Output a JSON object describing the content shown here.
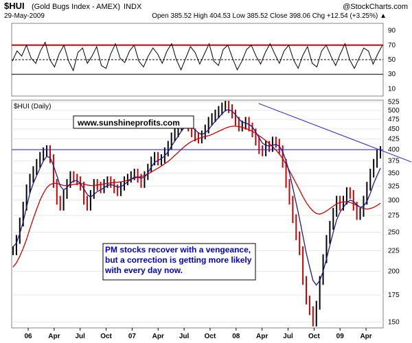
{
  "header": {
    "symbol": "$HUI",
    "name": "(Gold Bugs Index - AMEX)",
    "exchange": "INDX",
    "date": "29-May-2009",
    "ohlc": "Open 385.52  High 404.53  Low 385.52  Close 398.06  Chg +12.54 (+3.25%) ▲",
    "watermark": "@StockCharts.com"
  },
  "colors": {
    "price_bar": "#000000",
    "ma_short": "#1a1a8c",
    "ma_long": "#cc0000",
    "resistance": "#1f1fd6",
    "rsi_line": "#000000",
    "rsi_overbought": "#cc0000",
    "rsi_dashed": "#000000",
    "annotation_text": "#0000cc",
    "box_border": "#000000"
  },
  "chart_data": [
    {
      "type": "line",
      "title": "",
      "xlabel": "",
      "ylabel": "",
      "ylim": [
        0,
        100
      ],
      "ticks": [
        "90",
        "70",
        "50",
        "30",
        "10"
      ],
      "reference_lines": [
        70,
        50,
        30
      ],
      "series": [
        {
          "values": [
            48,
            62,
            55,
            70,
            52,
            45,
            62,
            74,
            50,
            40,
            58,
            70,
            48,
            35,
            60,
            66,
            45,
            55,
            68,
            42,
            38,
            58,
            72,
            52,
            46,
            62,
            70,
            48,
            40,
            55,
            66,
            58,
            45,
            62,
            72,
            50,
            36,
            52,
            68,
            60,
            44,
            58,
            72,
            48,
            42,
            64,
            70,
            52,
            36,
            48,
            64,
            70,
            55,
            44,
            60,
            72,
            58,
            45,
            62,
            70,
            50,
            38,
            56,
            68,
            45,
            40,
            62,
            70,
            55,
            42,
            58,
            72,
            50,
            38,
            52,
            66,
            62,
            44,
            58,
            70
          ]
        }
      ]
    },
    {
      "type": "bar",
      "title": "$HUI (Daily)",
      "xlabel": "",
      "ylabel": "",
      "ylim": [
        145,
        530
      ],
      "yscale": "log",
      "x_ticks": [
        "06",
        "Apr",
        "Jul",
        "Oct",
        "07",
        "Apr",
        "Jul",
        "Oct",
        "08",
        "Apr",
        "Jul",
        "Oct",
        "09",
        "Apr"
      ],
      "y_ticks": [
        "525",
        "500",
        "475",
        "450",
        "425",
        "400",
        "375",
        "350",
        "325",
        "300",
        "275",
        "250",
        "225",
        "200",
        "175",
        "150"
      ],
      "series": [
        {
          "name": "price",
          "values": [
            225,
            240,
            265,
            290,
            320,
            340,
            355,
            370,
            385,
            395,
            400,
            380,
            330,
            300,
            290,
            310,
            330,
            345,
            340,
            335,
            325,
            300,
            290,
            310,
            330,
            325,
            320,
            330,
            335,
            330,
            320,
            315,
            325,
            335,
            340,
            345,
            350,
            340,
            330,
            345,
            360,
            375,
            385,
            375,
            380,
            395,
            410,
            430,
            440,
            455,
            465,
            470,
            455,
            440,
            430,
            425,
            435,
            450,
            470,
            480,
            490,
            500,
            510,
            515,
            505,
            490,
            470,
            455,
            460,
            470,
            455,
            440,
            420,
            400,
            395,
            410,
            405,
            420,
            415,
            400,
            370,
            330,
            300,
            270,
            245,
            225,
            190,
            170,
            160,
            150,
            165,
            190,
            215,
            240,
            260,
            280,
            300,
            290,
            300,
            315,
            310,
            290,
            275,
            280,
            300,
            325,
            350,
            370,
            390,
            398
          ]
        },
        {
          "name": "ma_short",
          "values": [
            230,
            235,
            248,
            265,
            288,
            312,
            330,
            345,
            360,
            375,
            385,
            382,
            365,
            345,
            325,
            318,
            322,
            330,
            335,
            335,
            330,
            320,
            310,
            305,
            310,
            315,
            318,
            322,
            326,
            328,
            326,
            323,
            324,
            328,
            333,
            338,
            342,
            342,
            340,
            342,
            350,
            362,
            372,
            376,
            380,
            386,
            395,
            408,
            420,
            432,
            445,
            455,
            458,
            455,
            448,
            440,
            436,
            440,
            448,
            460,
            470,
            480,
            490,
            500,
            502,
            498,
            488,
            476,
            468,
            465,
            462,
            455,
            442,
            428,
            415,
            410,
            408,
            410,
            412,
            408,
            395,
            375,
            350,
            322,
            295,
            270,
            245,
            222,
            205,
            190,
            185,
            190,
            200,
            215,
            232,
            250,
            268,
            280,
            288,
            296,
            300,
            298,
            292,
            288,
            290,
            298,
            312,
            330,
            345,
            360
          ]
        },
        {
          "name": "ma_long",
          "values": [
            205,
            210,
            218,
            228,
            240,
            255,
            270,
            285,
            300,
            312,
            322,
            328,
            330,
            330,
            328,
            326,
            326,
            327,
            328,
            329,
            330,
            329,
            327,
            326,
            326,
            327,
            328,
            329,
            330,
            331,
            332,
            332,
            333,
            334,
            336,
            338,
            340,
            342,
            343,
            345,
            348,
            352,
            356,
            360,
            364,
            369,
            374,
            380,
            387,
            394,
            401,
            408,
            414,
            419,
            423,
            426,
            429,
            431,
            433,
            436,
            440,
            444,
            448,
            452,
            455,
            457,
            457,
            456,
            454,
            451,
            448,
            444,
            439,
            433,
            427,
            421,
            414,
            407,
            399,
            390,
            380,
            368,
            355,
            342,
            330,
            318,
            306,
            296,
            288,
            282,
            278,
            277,
            279,
            282,
            286,
            290,
            294,
            296,
            297,
            297,
            296,
            294,
            291,
            288,
            286,
            285,
            286,
            288,
            291,
            295
          ]
        }
      ],
      "trendlines": [
        {
          "name": "resistance",
          "value": 400
        },
        {
          "name": "declining-resistance",
          "from": 520,
          "to": 400
        }
      ],
      "annotations": [
        "www.sunshineprofits.com",
        "PM stocks recover with a vengeance, but a correction is getting more likely with every day now."
      ]
    }
  ]
}
